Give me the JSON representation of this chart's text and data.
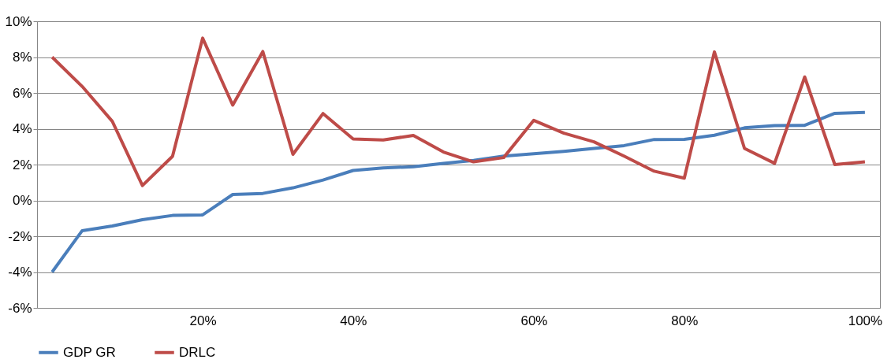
{
  "chart_data": {
    "type": "line",
    "categories": [
      null,
      null,
      null,
      null,
      null,
      "20%",
      null,
      null,
      null,
      null,
      "40%",
      null,
      null,
      null,
      null,
      null,
      "60%",
      null,
      null,
      null,
      null,
      "80%",
      null,
      null,
      null,
      null,
      null,
      "100%"
    ],
    "series": [
      {
        "name": "GDP GR",
        "color": "#4a7ebb",
        "values": [
          -4.0,
          -1.69,
          -1.43,
          -1.08,
          -0.84,
          -0.81,
          0.33,
          0.39,
          0.7,
          1.14,
          1.67,
          1.81,
          1.88,
          2.07,
          2.23,
          2.47,
          2.6,
          2.74,
          2.9,
          3.06,
          3.4,
          3.41,
          3.64,
          4.05,
          4.18,
          4.19,
          4.86,
          4.91
        ]
      },
      {
        "name": "DRLC",
        "color": "#be4b48",
        "values": [
          8.0,
          6.36,
          4.41,
          0.83,
          2.46,
          9.06,
          5.32,
          8.31,
          2.57,
          4.85,
          3.43,
          3.37,
          3.63,
          2.7,
          2.15,
          2.39,
          4.47,
          3.75,
          3.27,
          2.47,
          1.63,
          1.24,
          8.29,
          2.9,
          2.07,
          6.89,
          2.0,
          2.15
        ]
      }
    ],
    "ylim": [
      -6,
      10
    ],
    "yticks": [
      {
        "value": -6,
        "label": "-6%"
      },
      {
        "value": -4,
        "label": "-4%"
      },
      {
        "value": -2,
        "label": "-2%"
      },
      {
        "value": 0,
        "label": "0%"
      },
      {
        "value": 2,
        "label": "2%"
      },
      {
        "value": 4,
        "label": "4%"
      },
      {
        "value": 6,
        "label": "6%"
      },
      {
        "value": 8,
        "label": "8%"
      },
      {
        "value": 10,
        "label": "10%"
      }
    ],
    "grid": "y",
    "legend": "bottom",
    "marker": "none",
    "line_style": "solid"
  }
}
